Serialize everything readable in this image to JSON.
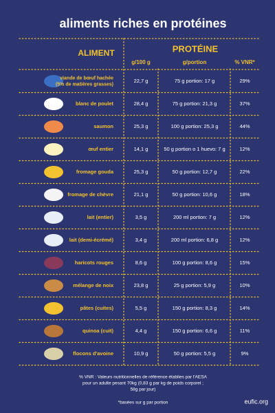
{
  "title": "aliments riches en protéines",
  "header": {
    "aliment": "ALIMENT",
    "proteine": "PROTÉINE",
    "per100": "g/100 g",
    "perPortion": "g/portion",
    "vnr": "% VNR*"
  },
  "rows": [
    {
      "name": [
        "viande de bœuf hachée",
        "(5% de matières grasses)"
      ],
      "per100": "22,7 g",
      "portion": "75 g portion: 17 g",
      "vnr": "29%"
    },
    {
      "name": [
        "blanc de poulet"
      ],
      "per100": "28,4 g",
      "portion": "75 g portion: 21,3 g",
      "vnr": "37%"
    },
    {
      "name": [
        "saumon"
      ],
      "per100": "25,3 g",
      "portion": "100 g portion: 25,3 g",
      "vnr": "44%"
    },
    {
      "name": [
        "œuf entier"
      ],
      "per100": "14,1 g",
      "portion": "50 g portion o 1 huevo: 7 g",
      "vnr": "12%"
    },
    {
      "name": [
        "fromage gouda"
      ],
      "per100": "25,3 g",
      "portion": "50 g portion: 12,7 g",
      "vnr": "22%"
    },
    {
      "name": [
        "fromage de chèvre"
      ],
      "per100": "21,1 g",
      "portion": "50 g portion: 10,6 g",
      "vnr": "18%"
    },
    {
      "name": [
        "lait (entier)"
      ],
      "per100": "3,5 g",
      "portion": "200 ml portion: 7 g",
      "vnr": "12%"
    },
    {
      "name": [
        "lait (demi-écrémé)"
      ],
      "per100": "3,4 g",
      "portion": "200 ml portion: 6,8 g",
      "vnr": "12%"
    },
    {
      "name": [
        "haricots rouges"
      ],
      "per100": "8,6 g",
      "portion": "100 g portion: 8,6 g",
      "vnr": "15%"
    },
    {
      "name": [
        "mélange de noix"
      ],
      "per100": "23,8 g",
      "portion": "25 g portion: 5,9 g",
      "vnr": "10%"
    },
    {
      "name": [
        "pâtes (cuites)"
      ],
      "per100": "5,5 g",
      "portion": "150 g portion: 8,3 g",
      "vnr": "14%"
    },
    {
      "name": [
        "quinoa (cuit)"
      ],
      "per100": "4,4 g",
      "portion": "150 g portion: 6,6 g",
      "vnr": "11%"
    },
    {
      "name": [
        "flocons d'avoine"
      ],
      "per100": "10,9 g",
      "portion": "50 g portion: 5,5 g",
      "vnr": "9%"
    }
  ],
  "footnote": [
    "% VNR : Valeurs nutritionnelles de référence établies par l'AESA",
    "pour un adulte pesant 70kg (0,83 g par kg de poids corporel ;",
    "58g par jour)"
  ],
  "note": "*basées sur g par portion",
  "source": "eufic.org"
}
